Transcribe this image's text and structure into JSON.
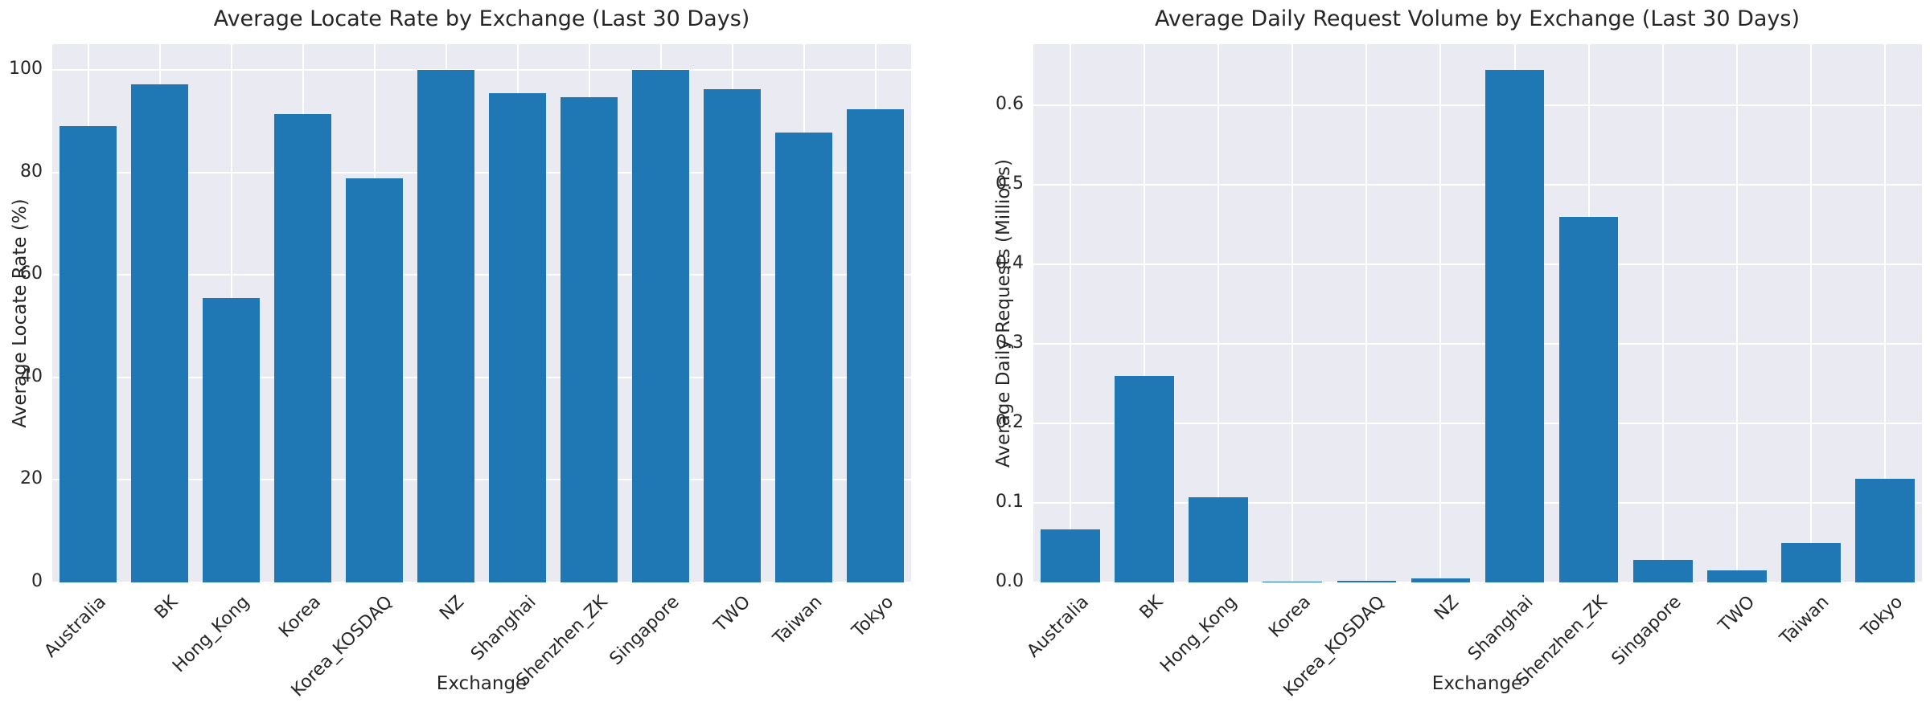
{
  "figure": {
    "background_color": "#ffffff",
    "plot_background_color": "#eaeaf2",
    "grid_color": "#ffffff",
    "bar_color": "#1f77b4",
    "text_color": "#262626"
  },
  "chart_data": [
    {
      "type": "bar",
      "title": "Average Locate Rate by Exchange (Last 30 Days)",
      "xlabel": "Exchange",
      "ylabel": "Average Locate Rate (%)",
      "categories": [
        "Australia",
        "BK",
        "Hong_Kong",
        "Korea",
        "Korea_KOSDAQ",
        "NZ",
        "Shanghai",
        "Shenzhen_ZK",
        "Singapore",
        "TWO",
        "Taiwan",
        "Tokyo"
      ],
      "values": [
        89.0,
        97.2,
        55.5,
        91.4,
        78.9,
        100.0,
        95.5,
        94.7,
        100.0,
        96.2,
        87.8,
        92.3
      ],
      "yticks": [
        0,
        20,
        40,
        60,
        80,
        100
      ],
      "ytick_labels": [
        "0",
        "20",
        "40",
        "60",
        "80",
        "100"
      ],
      "ylim": [
        0,
        105
      ],
      "grid": true,
      "legend": "none"
    },
    {
      "type": "bar",
      "title": "Average Daily Request Volume by Exchange (Last 30 Days)",
      "xlabel": "Exchange",
      "ylabel": "Average Daily Requests (Millions)",
      "categories": [
        "Australia",
        "BK",
        "Hong_Kong",
        "Korea",
        "Korea_KOSDAQ",
        "NZ",
        "Shanghai",
        "Shenzhen_ZK",
        "Singapore",
        "TWO",
        "Taiwan",
        "Tokyo"
      ],
      "values": [
        0.067,
        0.26,
        0.107,
        0.001,
        0.002,
        0.005,
        0.645,
        0.46,
        0.028,
        0.015,
        0.05,
        0.13
      ],
      "yticks": [
        0.0,
        0.1,
        0.2,
        0.3,
        0.4,
        0.5,
        0.6
      ],
      "ytick_labels": [
        "0.0",
        "0.1",
        "0.2",
        "0.3",
        "0.4",
        "0.5",
        "0.6"
      ],
      "ylim": [
        0,
        0.677
      ],
      "grid": true,
      "legend": "none"
    }
  ]
}
